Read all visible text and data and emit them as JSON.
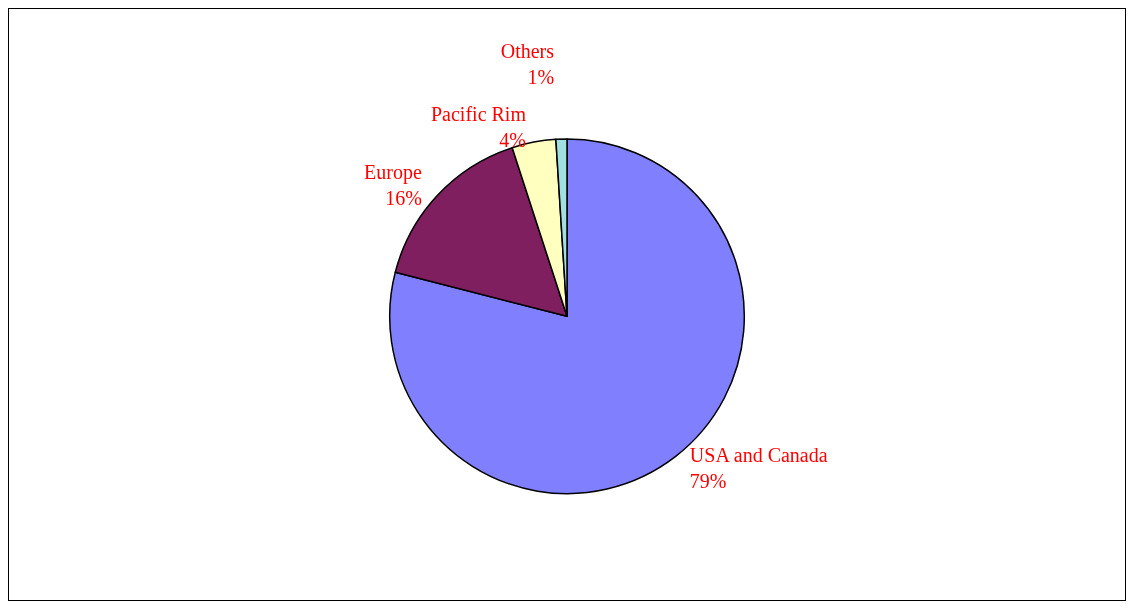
{
  "chart_data": {
    "type": "pie",
    "categories": [
      "USA and Canada",
      "Europe",
      "Pacific Rim",
      "Others"
    ],
    "values": [
      79,
      16,
      4,
      1
    ],
    "colors": [
      "#8080ff",
      "#7f1f5f",
      "#ffffc0",
      "#a0e0e0"
    ],
    "value_labels": [
      "79%",
      "16%",
      "4%",
      "1%"
    ],
    "legend": false
  }
}
